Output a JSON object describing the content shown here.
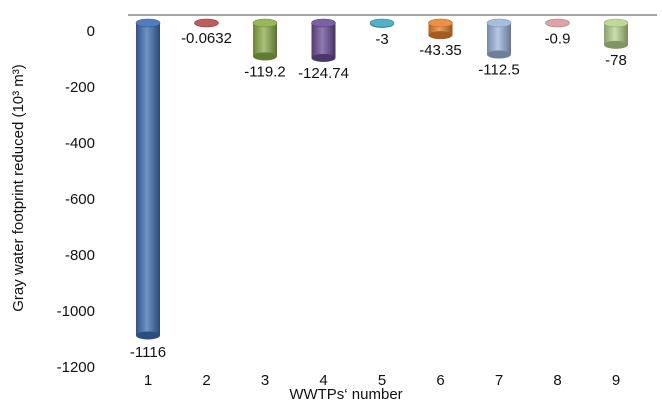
{
  "chart_data": {
    "type": "bar",
    "categories": [
      "1",
      "2",
      "3",
      "4",
      "5",
      "6",
      "7",
      "8",
      "9"
    ],
    "values": [
      -1116,
      -0.0632,
      -119.2,
      -124.74,
      -3,
      -43.35,
      -112.5,
      -0.9,
      -78
    ],
    "data_labels": [
      "-1116",
      "-0.0632",
      "-119.2",
      "-124.74",
      "-3",
      "-43.35",
      "-112.5",
      "-0.9",
      "-78"
    ],
    "colors": [
      "#3f6fb4",
      "#b84a4a",
      "#8eae4a",
      "#6b4f97",
      "#3fa9be",
      "#e9842f",
      "#9db6dc",
      "#d99a9a",
      "#b8d48f"
    ],
    "ylim": [
      -1200,
      0
    ],
    "yticks": [
      "0",
      "-200",
      "-400",
      "-600",
      "-800",
      "-1000",
      "-1200"
    ],
    "ytick_values": [
      0,
      -200,
      -400,
      -600,
      -800,
      -1000,
      -1200
    ],
    "xlabel": "WWTPs‘ number",
    "ylabel": "Gray water footprint reduced  (10³ m³)",
    "grid": false,
    "legend": "none"
  }
}
